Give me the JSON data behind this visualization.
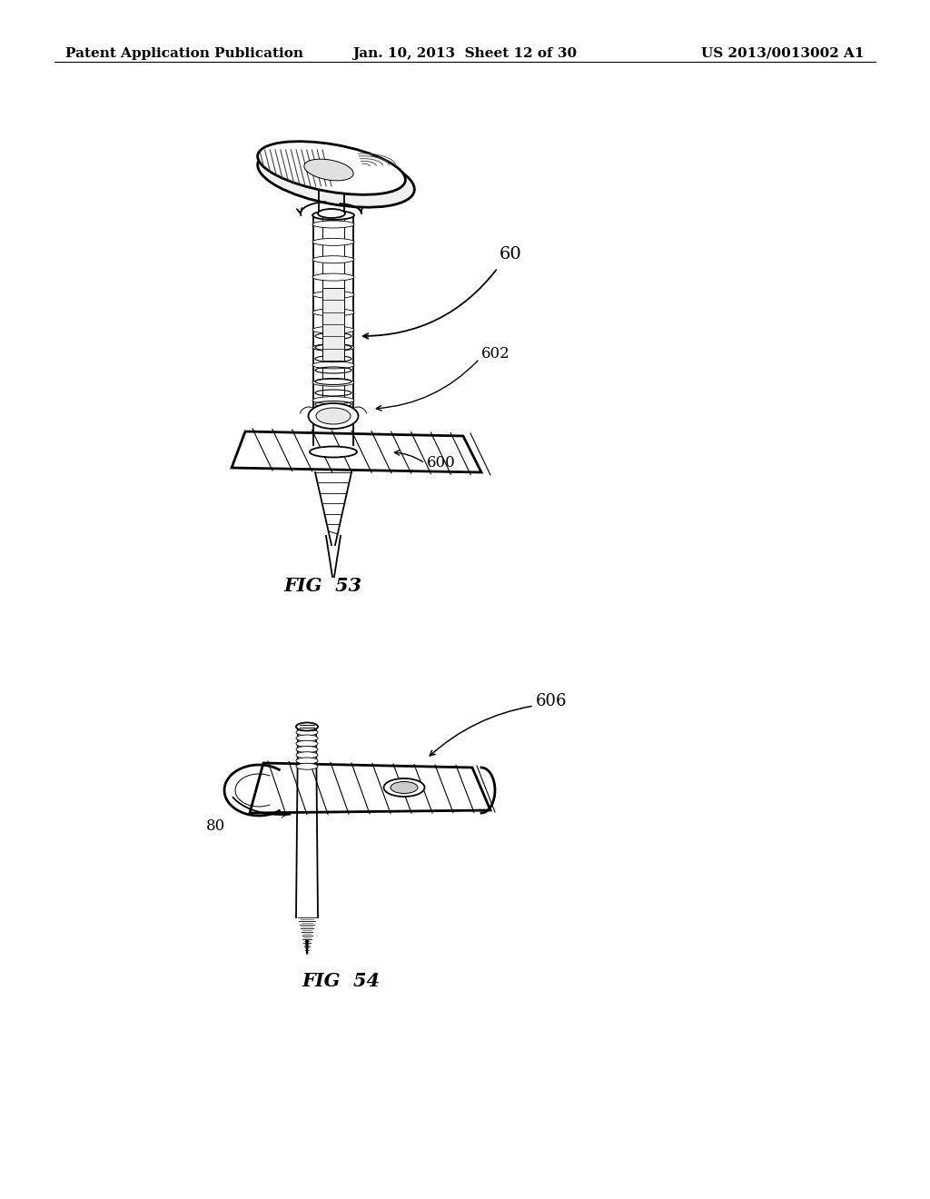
{
  "background_color": "#ffffff",
  "header_left": "Patent Application Publication",
  "header_center": "Jan. 10, 2013  Sheet 12 of 30",
  "header_right": "US 2013/0013002 A1",
  "fig53_label": "FIG  53",
  "fig54_label": "FIG  54",
  "label_60": "60",
  "label_600": "600",
  "label_602": "602",
  "label_606": "606",
  "label_80": "80",
  "text_color": "#000000",
  "line_color": "#000000",
  "header_fontsize": 11,
  "fig_label_fontsize": 15,
  "annotation_fontsize": 12
}
